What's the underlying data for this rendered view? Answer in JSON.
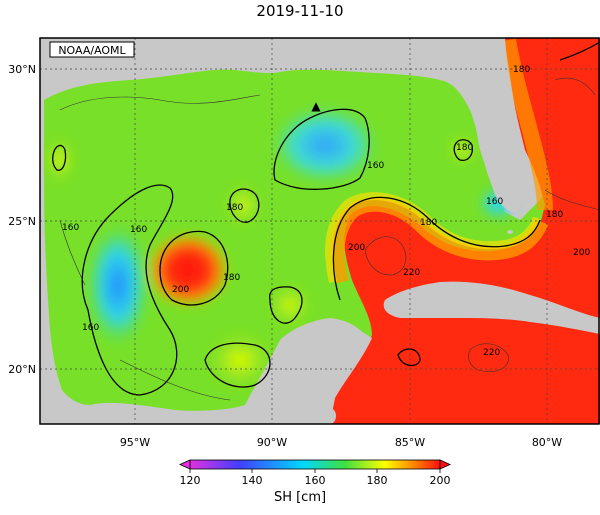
{
  "title": "2019-11-10",
  "credit": "NOAA/AOML",
  "axes": {
    "lon_ticks": [
      "95°W",
      "90°W",
      "85°W",
      "80°W"
    ],
    "lat_ticks": [
      "30°N",
      "25°N",
      "20°N"
    ],
    "lon_range": [
      -98.5,
      -78.0
    ],
    "lat_range": [
      18.0,
      31.0
    ]
  },
  "contour_labels": [
    "160",
    "160",
    "160",
    "180",
    "180",
    "200",
    "160",
    "180",
    "180",
    "200",
    "220",
    "220",
    "200",
    "180",
    "180",
    "160"
  ],
  "colorbar": {
    "title": "SH [cm]",
    "ticks": [
      "120",
      "140",
      "160",
      "180",
      "200"
    ],
    "range": [
      120,
      200
    ],
    "colors": [
      "#e030e0",
      "#4040ff",
      "#00d8ff",
      "#40e040",
      "#ffff00",
      "#ff8000",
      "#ff1010"
    ]
  },
  "colors": {
    "land": "#c8c8c8",
    "warm": "#ff2010",
    "gulf": "#80e020"
  },
  "marker": {
    "symbol": "▲"
  }
}
